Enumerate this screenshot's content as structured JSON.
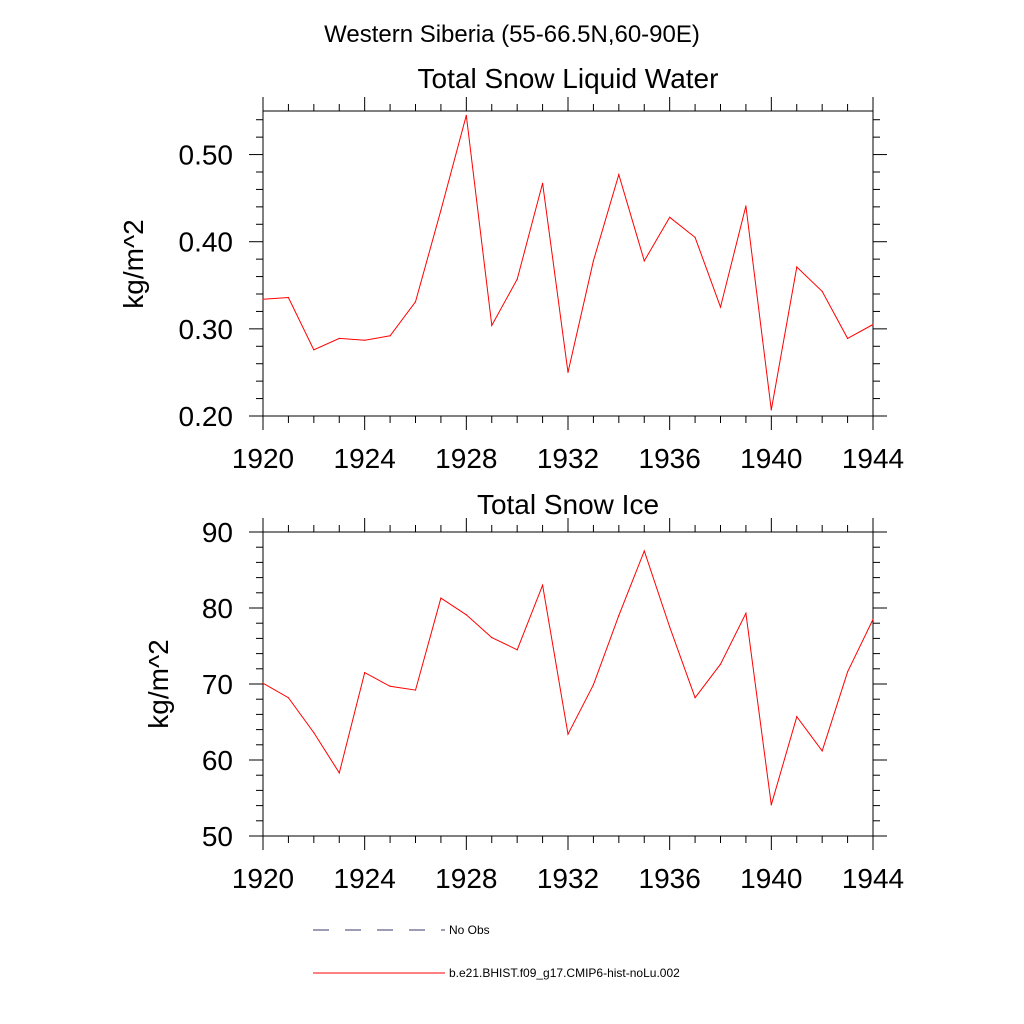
{
  "figure_title": "Western Siberia (55-66.5N,60-90E)",
  "colors": {
    "series_line": "#ff0000",
    "obs_line": "#3a3a6e",
    "axis": "#000000",
    "background": "#ffffff"
  },
  "legend": {
    "obs_label": "No Obs",
    "model_label": "b.e21.BHIST.f09_g17.CMIP6-hist-noLu.002"
  },
  "chart_data": [
    {
      "type": "line",
      "title": "Total Snow Liquid Water",
      "xlabel": "",
      "ylabel": "kg/m^2",
      "xlim": [
        1920,
        1944
      ],
      "ylim": [
        0.2,
        0.55
      ],
      "xticks": [
        1920,
        1924,
        1928,
        1932,
        1936,
        1940,
        1944
      ],
      "xtick_labels": [
        "1920",
        "1924",
        "1928",
        "1932",
        "1936",
        "1940",
        "1944"
      ],
      "yticks": [
        0.2,
        0.3,
        0.4,
        0.5
      ],
      "ytick_labels": [
        "0.20",
        "0.30",
        "0.40",
        "0.50"
      ],
      "x_minor_step": 1,
      "y_minor_step": 0.02,
      "grid": false,
      "x": [
        1920,
        1921,
        1922,
        1923,
        1924,
        1925,
        1926,
        1927,
        1928,
        1929,
        1930,
        1931,
        1932,
        1933,
        1934,
        1935,
        1936,
        1937,
        1938,
        1939,
        1940,
        1941,
        1942,
        1943,
        1944
      ],
      "series": [
        {
          "name": "b.e21.BHIST.f09_g17.CMIP6-hist-noLu.002",
          "color": "#ff0000",
          "values": [
            0.334,
            0.336,
            0.276,
            0.289,
            0.287,
            0.292,
            0.331,
            0.436,
            0.545,
            0.304,
            0.357,
            0.467,
            0.25,
            0.378,
            0.477,
            0.378,
            0.428,
            0.405,
            0.325,
            0.441,
            0.207,
            0.371,
            0.343,
            0.289,
            0.305
          ]
        }
      ]
    },
    {
      "type": "line",
      "title": "Total Snow Ice",
      "xlabel": "",
      "ylabel": "kg/m^2",
      "xlim": [
        1920,
        1944
      ],
      "ylim": [
        50,
        90
      ],
      "xticks": [
        1920,
        1924,
        1928,
        1932,
        1936,
        1940,
        1944
      ],
      "xtick_labels": [
        "1920",
        "1924",
        "1928",
        "1932",
        "1936",
        "1940",
        "1944"
      ],
      "yticks": [
        50,
        60,
        70,
        80,
        90
      ],
      "ytick_labels": [
        "50",
        "60",
        "70",
        "80",
        "90"
      ],
      "x_minor_step": 1,
      "y_minor_step": 2,
      "grid": false,
      "x": [
        1920,
        1921,
        1922,
        1923,
        1924,
        1925,
        1926,
        1927,
        1928,
        1929,
        1930,
        1931,
        1932,
        1933,
        1934,
        1935,
        1936,
        1937,
        1938,
        1939,
        1940,
        1941,
        1942,
        1943,
        1944
      ],
      "series": [
        {
          "name": "b.e21.BHIST.f09_g17.CMIP6-hist-noLu.002",
          "color": "#ff0000",
          "values": [
            70.1,
            68.2,
            63.6,
            58.3,
            71.5,
            69.7,
            69.2,
            81.3,
            79.1,
            76.1,
            74.5,
            83.0,
            63.4,
            69.9,
            79.0,
            87.5,
            77.5,
            68.2,
            72.6,
            79.3,
            54.1,
            65.7,
            61.2,
            71.6,
            78.5
          ]
        }
      ]
    }
  ]
}
